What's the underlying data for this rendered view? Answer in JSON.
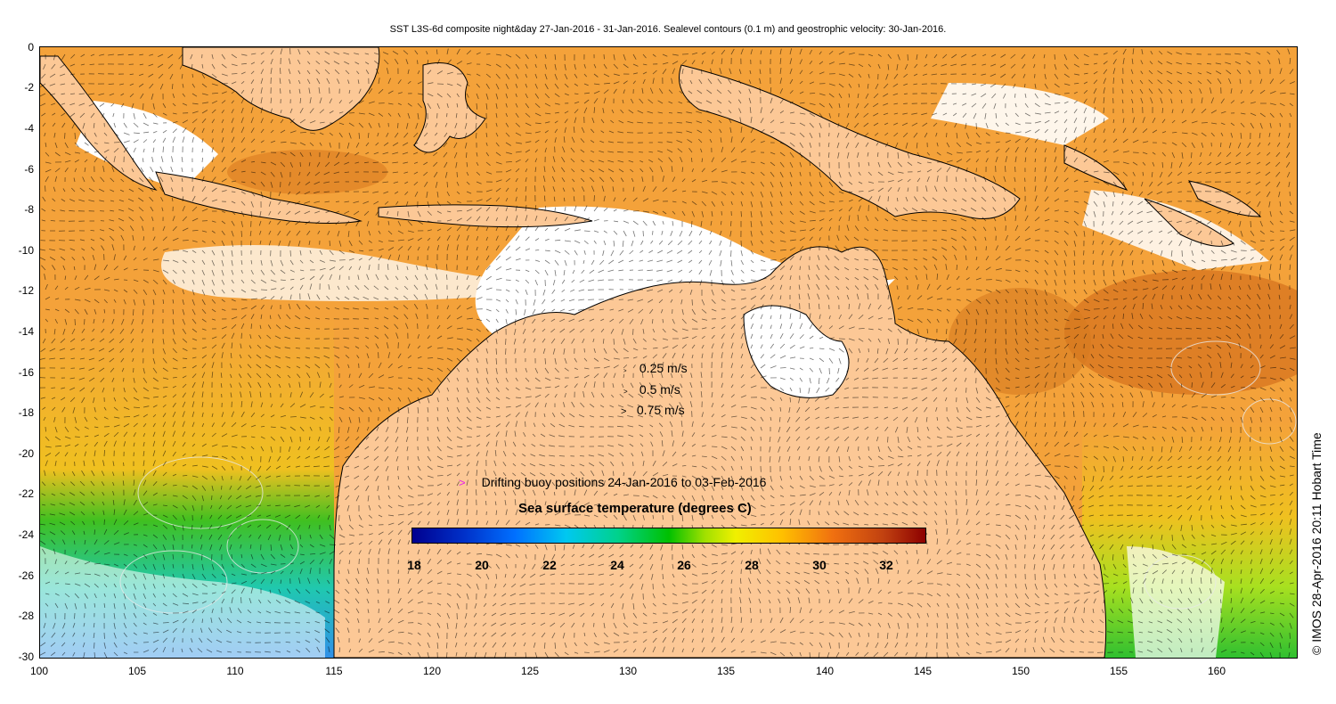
{
  "title": "SST L3S-6d composite night&day 27-Jan-2016 - 31-Jan-2016. Sealevel contours (0.1 m) and geostrophic velocity: 30-Jan-2016.",
  "axes": {
    "x_ticks": [
      "100",
      "105",
      "110",
      "115",
      "120",
      "125",
      "130",
      "135",
      "140",
      "145",
      "150",
      "155",
      "160"
    ],
    "y_ticks": [
      "0",
      "-2",
      "-4",
      "-6",
      "-8",
      "-10",
      "-12",
      "-14",
      "-16",
      "-18",
      "-20",
      "-22",
      "-24",
      "-26",
      "-28",
      "-30"
    ],
    "lon_range": [
      100,
      164
    ],
    "lat_range": [
      -30,
      0
    ]
  },
  "velocity_legend": [
    {
      "label": "0.25 m/s"
    },
    {
      "label": "0.5 m/s"
    },
    {
      "label": "0.75 m/s"
    }
  ],
  "buoy_legend": {
    "marker": ">",
    "label": "Drifting buoy positions 24-Jan-2016 to 03-Feb-2016"
  },
  "colorbar": {
    "title": "Sea surface temperature (degrees C)",
    "ticks": [
      "18",
      "20",
      "22",
      "24",
      "26",
      "28",
      "30",
      "32"
    ],
    "range": [
      18,
      33
    ]
  },
  "credit": "© IMOS 28-Apr-2016 20:11 Hobart Time",
  "colors": {
    "land": "#fcc896",
    "warm_sst": "#f4a23a",
    "hot_sst": "#d4701c",
    "mid_sst": "#30c020",
    "cool_sst": "#30b8e0",
    "cloud": "#ffffff",
    "buoy_marker": "#e81ee8"
  }
}
